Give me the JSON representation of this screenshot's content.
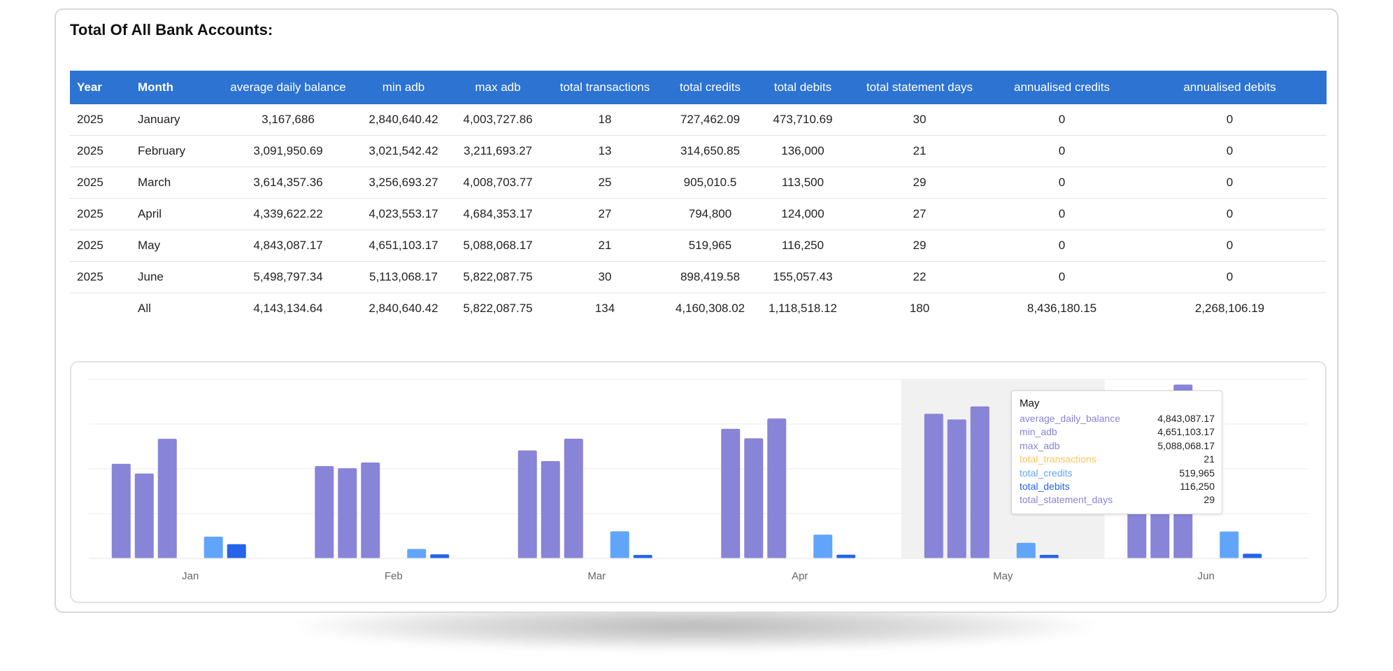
{
  "title": "Total Of All Bank Accounts:",
  "table": {
    "headers": [
      "Year",
      "Month",
      "average daily balance",
      "min adb",
      "max adb",
      "total transactions",
      "total credits",
      "total debits",
      "total statement days",
      "annualised credits",
      "annualised debits"
    ],
    "rows": [
      [
        "2025",
        "January",
        "3,167,686",
        "2,840,640.42",
        "4,003,727.86",
        "18",
        "727,462.09",
        "473,710.69",
        "30",
        "0",
        "0"
      ],
      [
        "2025",
        "February",
        "3,091,950.69",
        "3,021,542.42",
        "3,211,693.27",
        "13",
        "314,650.85",
        "136,000",
        "21",
        "0",
        "0"
      ],
      [
        "2025",
        "March",
        "3,614,357.36",
        "3,256,693.27",
        "4,008,703.77",
        "25",
        "905,010.5",
        "113,500",
        "29",
        "0",
        "0"
      ],
      [
        "2025",
        "April",
        "4,339,622.22",
        "4,023,553.17",
        "4,684,353.17",
        "27",
        "794,800",
        "124,000",
        "27",
        "0",
        "0"
      ],
      [
        "2025",
        "May",
        "4,843,087.17",
        "4,651,103.17",
        "5,088,068.17",
        "21",
        "519,965",
        "116,250",
        "29",
        "0",
        "0"
      ],
      [
        "2025",
        "June",
        "5,498,797.34",
        "5,113,068.17",
        "5,822,087.75",
        "30",
        "898,419.58",
        "155,057.43",
        "22",
        "0",
        "0"
      ],
      [
        "",
        "All",
        "4,143,134.64",
        "2,840,640.42",
        "5,822,087.75",
        "134",
        "4,160,308.02",
        "1,118,518.12",
        "180",
        "8,436,180.15",
        "2,268,106.19"
      ]
    ]
  },
  "chart_data": {
    "type": "bar",
    "categories": [
      "Jan",
      "Feb",
      "Mar",
      "Apr",
      "May",
      "Jun"
    ],
    "ylim": [
      0,
      6000000
    ],
    "grid": true,
    "highlighted_category": "May",
    "series": [
      {
        "name": "average_daily_balance",
        "color": "#8884d8",
        "values": [
          3167686,
          3091950.69,
          3614357.36,
          4339622.22,
          4843087.17,
          5498797.34
        ]
      },
      {
        "name": "min_adb",
        "color": "#8884d8",
        "values": [
          2840640.42,
          3021542.42,
          3256693.27,
          4023553.17,
          4651103.17,
          5113068.17
        ]
      },
      {
        "name": "max_adb",
        "color": "#8884d8",
        "values": [
          4003727.86,
          3211693.27,
          4008703.77,
          4684353.17,
          5088068.17,
          5822087.75
        ]
      },
      {
        "name": "total_transactions",
        "color": "#ffc658",
        "values": [
          18,
          13,
          25,
          27,
          21,
          30
        ]
      },
      {
        "name": "total_credits",
        "color": "#60a5fa",
        "values": [
          727462.09,
          314650.85,
          905010.5,
          794800,
          519965,
          898419.58
        ]
      },
      {
        "name": "total_debits",
        "color": "#2563eb",
        "values": [
          473710.69,
          136000,
          113500,
          124000,
          116250,
          155057.43
        ]
      },
      {
        "name": "total_statement_days",
        "color": "#8884d8",
        "values": [
          30,
          21,
          29,
          27,
          29,
          22
        ]
      }
    ]
  },
  "tooltip": {
    "title": "May",
    "rows": [
      {
        "label": "average_daily_balance",
        "value": "4,843,087.17",
        "color": "#8884d8"
      },
      {
        "label": "min_adb",
        "value": "4,651,103.17",
        "color": "#8884d8"
      },
      {
        "label": "max_adb",
        "value": "5,088,068.17",
        "color": "#8884d8"
      },
      {
        "label": "total_transactions",
        "value": "21",
        "color": "#ffc658"
      },
      {
        "label": "total_credits",
        "value": "519,965",
        "color": "#60a5fa"
      },
      {
        "label": "total_debits",
        "value": "116,250",
        "color": "#2563eb"
      },
      {
        "label": "total_statement_days",
        "value": "29",
        "color": "#8884d8"
      }
    ]
  }
}
